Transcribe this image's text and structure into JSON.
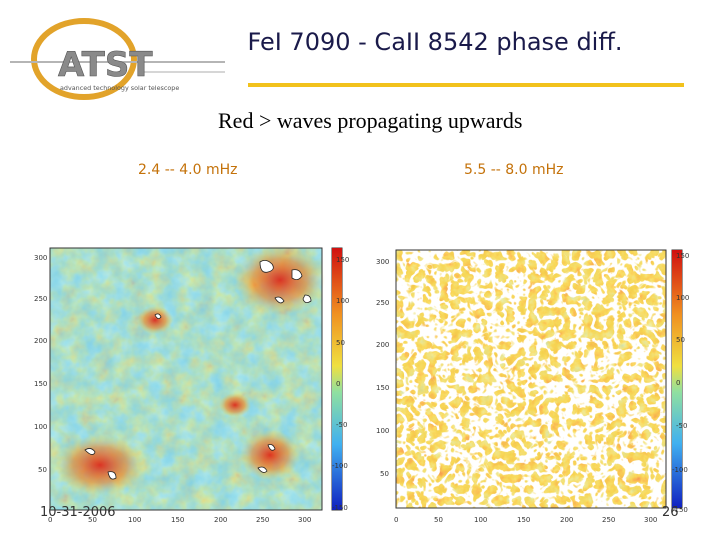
{
  "logo": {
    "text": "ATST",
    "tagline": "advanced technology solar telescope"
  },
  "title": "FeI 7090 - CaII 8542 phase diff.",
  "subtitle": "Red > waves propagating upwards",
  "panels": [
    {
      "label": "2.4 -- 4.0 mHz",
      "y_ticks": [
        "300",
        "250",
        "200",
        "150",
        "100",
        "50"
      ],
      "x_ticks": [
        "0",
        "50",
        "100",
        "150",
        "200",
        "250",
        "300"
      ],
      "colorbar_ticks": [
        "150",
        "100",
        "50",
        "0",
        "-50",
        "-100",
        "-150"
      ]
    },
    {
      "label": "5.5 -- 8.0 mHz",
      "y_ticks": [
        "300",
        "250",
        "200",
        "150",
        "100",
        "50"
      ],
      "x_ticks": [
        "0",
        "50",
        "100",
        "150",
        "200",
        "250",
        "300"
      ],
      "colorbar_ticks": [
        "150",
        "100",
        "50",
        "0",
        "-50",
        "-100",
        "-150"
      ]
    }
  ],
  "footer": {
    "date": "10-31-2006",
    "page": "26"
  },
  "colors": {
    "title": "#1a1a4a",
    "rule": "#f2c21c",
    "label": "#c4720a",
    "logo_gold": "#e2a32a",
    "logo_gray": "#8a8a8a"
  }
}
